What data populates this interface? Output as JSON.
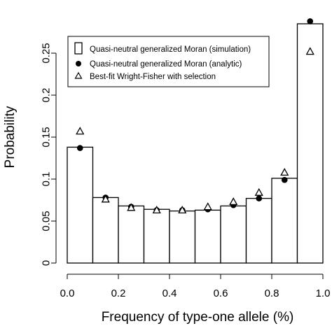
{
  "chart_data": {
    "type": "bar",
    "xlabel": "Frequency of type-one allele (%)",
    "ylabel": "Probability",
    "xlim": [
      0,
      1
    ],
    "ylim": [
      0,
      0.28
    ],
    "x_ticks": [
      "0.0",
      "0.2",
      "0.4",
      "0.6",
      "0.8",
      "1.0"
    ],
    "x_tick_values": [
      0,
      0.2,
      0.4,
      0.6,
      0.8,
      1.0
    ],
    "y_ticks": [
      "0",
      "0.05",
      "0.1",
      "0.15",
      "0.2",
      "0.25"
    ],
    "y_tick_values": [
      0,
      0.05,
      0.1,
      0.15,
      0.2,
      0.25
    ],
    "grid": false,
    "legend_position": "top-left",
    "bin_edges": [
      0,
      0.1,
      0.2,
      0.3,
      0.4,
      0.5,
      0.6,
      0.7,
      0.8,
      0.9,
      1.0
    ],
    "series": [
      {
        "name": "Quasi-neutral generalized Moran (simulation)",
        "kind": "histogram",
        "values": [
          0.138,
          0.078,
          0.068,
          0.064,
          0.062,
          0.063,
          0.068,
          0.077,
          0.101,
          0.285
        ]
      },
      {
        "name": "Quasi-neutral generalized Moran (analytic)",
        "kind": "points",
        "marker": "filled-circle",
        "x": [
          0.05,
          0.15,
          0.25,
          0.35,
          0.45,
          0.55,
          0.65,
          0.75,
          0.85,
          0.95
        ],
        "values": [
          0.137,
          0.078,
          0.067,
          0.063,
          0.063,
          0.064,
          0.069,
          0.077,
          0.099,
          0.288
        ]
      },
      {
        "name": "Best-fit Wright-Fisher with selection",
        "kind": "points",
        "marker": "open-triangle",
        "x": [
          0.05,
          0.15,
          0.25,
          0.35,
          0.45,
          0.55,
          0.65,
          0.75,
          0.85,
          0.95
        ],
        "values": [
          0.157,
          0.076,
          0.066,
          0.063,
          0.063,
          0.067,
          0.073,
          0.084,
          0.108,
          0.252
        ]
      }
    ],
    "colors": {
      "axis": "#000000",
      "bar_fill": "#ffffff",
      "marker": "#000000"
    }
  }
}
